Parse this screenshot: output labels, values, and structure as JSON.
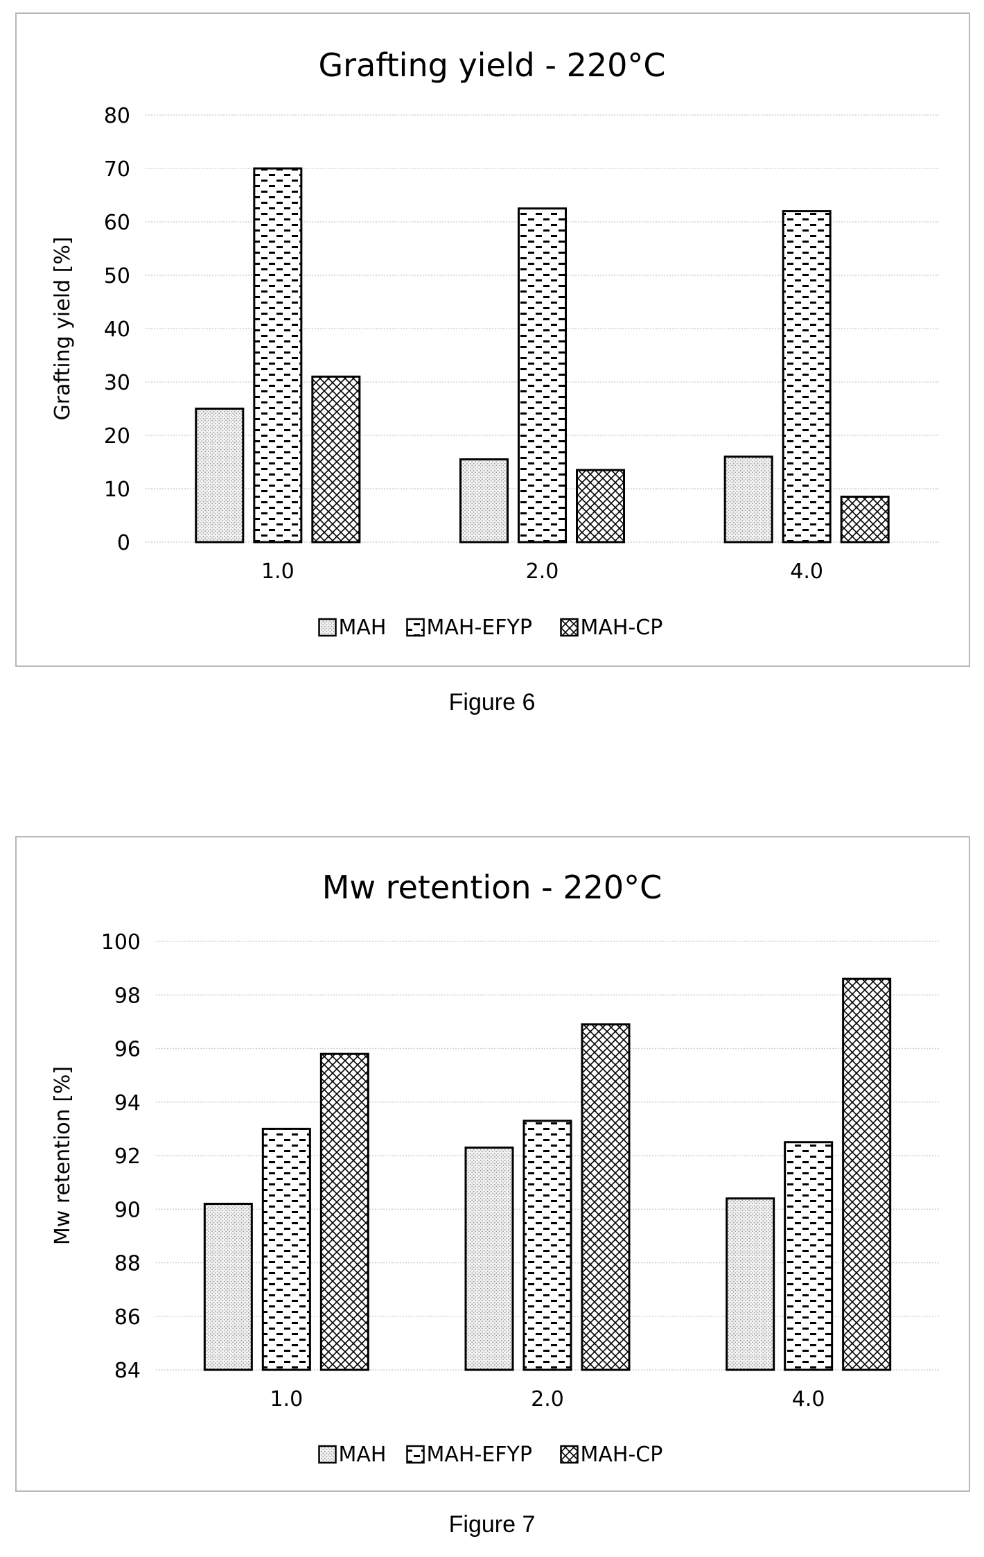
{
  "chart_data": [
    {
      "type": "bar",
      "title": "Grafting yield - 220°C",
      "xlabel": "",
      "ylabel": "Grafting yield [%]",
      "ylim": [
        0,
        80
      ],
      "yticks": [
        0,
        10,
        20,
        30,
        40,
        50,
        60,
        70,
        80
      ],
      "grid": true,
      "legend_position": "bottom",
      "categories": [
        "1.0",
        "2.0",
        "4.0"
      ],
      "series": [
        {
          "name": "MAH",
          "values": [
            25,
            15.5,
            16
          ],
          "pattern": "dots"
        },
        {
          "name": "MAH-EFYP",
          "values": [
            70,
            62.5,
            62
          ],
          "pattern": "dashes"
        },
        {
          "name": "MAH-CP",
          "values": [
            31,
            13.5,
            8.5
          ],
          "pattern": "crosshatch"
        }
      ],
      "caption": "Figure 6"
    },
    {
      "type": "bar",
      "title": "Mw retention - 220°C",
      "xlabel": "",
      "ylabel": "Mw retention [%]",
      "ylim": [
        84,
        100
      ],
      "yticks": [
        84,
        86,
        88,
        90,
        92,
        94,
        96,
        98,
        100
      ],
      "grid": true,
      "legend_position": "bottom",
      "categories": [
        "1.0",
        "2.0",
        "4.0"
      ],
      "series": [
        {
          "name": "MAH",
          "values": [
            90.2,
            92.3,
            90.4
          ],
          "pattern": "dots"
        },
        {
          "name": "MAH-EFYP",
          "values": [
            93.0,
            93.3,
            92.5
          ],
          "pattern": "dashes"
        },
        {
          "name": "MAH-CP",
          "values": [
            95.8,
            96.9,
            98.6
          ],
          "pattern": "crosshatch"
        }
      ],
      "caption": "Figure 7"
    }
  ]
}
